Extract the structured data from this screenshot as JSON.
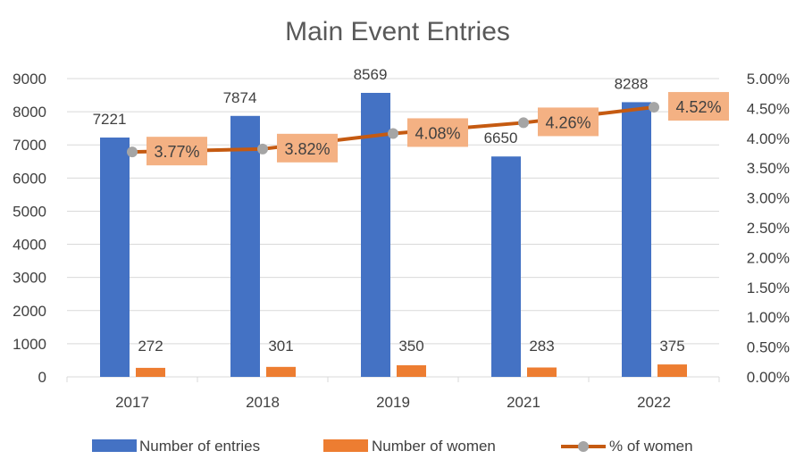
{
  "chart_data": {
    "type": "bar",
    "title": "Main Event Entries",
    "categories": [
      "2017",
      "2018",
      "2019",
      "2021",
      "2022"
    ],
    "series": [
      {
        "name": "Number of entries",
        "kind": "bar",
        "axis": "left",
        "color": "#4472C4",
        "values": [
          7221,
          7874,
          8569,
          6650,
          8288
        ],
        "labels": [
          "7221",
          "7874",
          "8569",
          "6650",
          "8288"
        ]
      },
      {
        "name": "Number of women",
        "kind": "bar",
        "axis": "left",
        "color": "#ED7D31",
        "values": [
          272,
          301,
          350,
          283,
          375
        ],
        "labels": [
          "272",
          "301",
          "350",
          "283",
          "375"
        ]
      },
      {
        "name": "% of women",
        "kind": "line",
        "axis": "right",
        "color": "#C55A11",
        "marker_color": "#A5A5A5",
        "label_bg": "#F4B183",
        "values": [
          3.77,
          3.82,
          4.08,
          4.26,
          4.52
        ],
        "labels": [
          "3.77%",
          "3.82%",
          "4.08%",
          "4.26%",
          "4.52%"
        ]
      }
    ],
    "y_left": {
      "range": [
        0,
        9000
      ],
      "ticks": [
        "0",
        "1000",
        "2000",
        "3000",
        "4000",
        "5000",
        "6000",
        "7000",
        "8000",
        "9000"
      ]
    },
    "y_right": {
      "range": [
        0,
        5
      ],
      "ticks": [
        "0.00%",
        "0.50%",
        "1.00%",
        "1.50%",
        "2.00%",
        "2.50%",
        "3.00%",
        "3.50%",
        "4.00%",
        "4.50%",
        "5.00%"
      ]
    },
    "grid": true,
    "legend_position": "bottom",
    "grid_color": "#D9D9D9"
  }
}
